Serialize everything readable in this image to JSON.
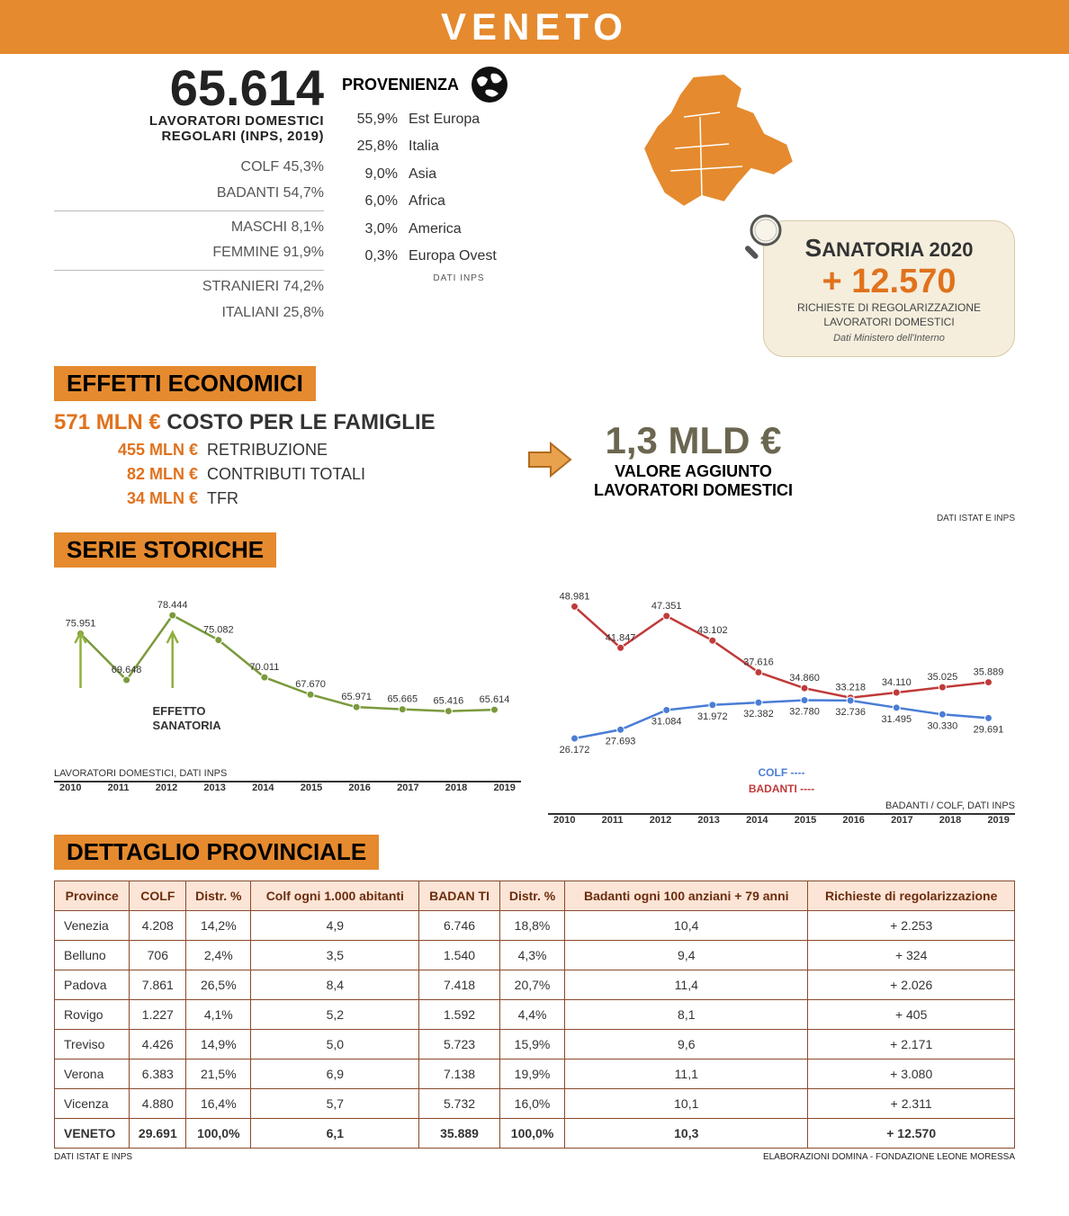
{
  "colors": {
    "orange_bar": "#e58a2e",
    "orange_text": "#e0721d",
    "olive": "#6b6650",
    "green_line": "#7a9a3c",
    "blue_line": "#4a7dd6",
    "red_line": "#c03a3a",
    "table_border": "#8a4a2c",
    "table_head_bg": "#fce5d6",
    "cream_box": "#f5eedd",
    "map_fill": "#e58a2e"
  },
  "title": "VENETO",
  "header": {
    "big_number": "65.614",
    "big_label1": "LAVORATORI DOMESTICI",
    "big_label2": "REGOLARI (INPS, 2019)",
    "stats": [
      "COLF 45,3%",
      "BADANTI 54,7%",
      "MASCHI 8,1%",
      "FEMMINE 91,9%",
      "STRANIERI 74,2%",
      "ITALIANI 25,8%"
    ]
  },
  "provenienza": {
    "title": "PROVENIENZA",
    "rows": [
      {
        "pct": "55,9%",
        "label": "Est Europa"
      },
      {
        "pct": "25,8%",
        "label": "Italia"
      },
      {
        "pct": "9,0%",
        "label": "Asia"
      },
      {
        "pct": "6,0%",
        "label": "Africa"
      },
      {
        "pct": "3,0%",
        "label": "America"
      },
      {
        "pct": "0,3%",
        "label": "Europa Ovest"
      }
    ],
    "source": "DATI INPS"
  },
  "sanatoria": {
    "title": "SANATORIA 2020",
    "value": "+ 12.570",
    "sub1": "RICHIESTE DI REGOLARIZZAZIONE",
    "sub2": "LAVORATORI DOMESTICI",
    "source": "Dati Ministero dell'Interno"
  },
  "sections": {
    "effetti": "EFFETTI ECONOMICI",
    "serie": "SERIE STORICHE",
    "dettaglio": "DETTAGLIO PROVINCIALE"
  },
  "effetti": {
    "headline_val": "571 MLN €",
    "headline_label": "COSTO PER LE FAMIGLIE",
    "lines": [
      {
        "amt": "455 MLN €",
        "label": "RETRIBUZIONE"
      },
      {
        "amt": "82 MLN €",
        "label": "CONTRIBUTI TOTALI"
      },
      {
        "amt": "34 MLN €",
        "label": "TFR"
      }
    ],
    "right_val": "1,3 MLD €",
    "right_sub1": "VALORE AGGIUNTO",
    "right_sub2": "LAVORATORI DOMESTICI",
    "source": "DATI ISTAT E INPS"
  },
  "serie_totale": {
    "type": "line",
    "years": [
      "2010",
      "2011",
      "2012",
      "2013",
      "2014",
      "2015",
      "2016",
      "2017",
      "2018",
      "2019"
    ],
    "values": [
      75951,
      69648,
      78444,
      75082,
      70011,
      67670,
      65971,
      65665,
      65416,
      65614
    ],
    "labels": [
      "75.951",
      "69.648",
      "78.444",
      "75.082",
      "70.011",
      "67.670",
      "65.971",
      "65.665",
      "65.416",
      "65.614"
    ],
    "ylim": [
      60000,
      82000
    ],
    "color": "#7a9a3c",
    "effetto_label": "EFFETTO\nSANATORIA",
    "caption": "LAVORATORI DOMESTICI, DATI INPS"
  },
  "serie_split": {
    "type": "line",
    "years": [
      "2010",
      "2011",
      "2012",
      "2013",
      "2014",
      "2015",
      "2016",
      "2017",
      "2018",
      "2019"
    ],
    "colf": {
      "values": [
        26172,
        27693,
        31084,
        31972,
        32382,
        32780,
        32736,
        31495,
        30330,
        29691
      ],
      "labels": [
        "26.172",
        "27.693",
        "31.084",
        "31.972",
        "32.382",
        "32.780",
        "32.736",
        "31.495",
        "30.330",
        "29.691"
      ],
      "color": "#4a7dd6",
      "legend": "COLF"
    },
    "badanti": {
      "values": [
        48981,
        41847,
        47351,
        43102,
        37616,
        34860,
        33218,
        34110,
        35025,
        35889
      ],
      "labels": [
        "48.981",
        "41.847",
        "47.351",
        "43.102",
        "37.616",
        "34.860",
        "33.218",
        "34.110",
        "35.025",
        "35.889"
      ],
      "color": "#c03a3a",
      "legend": "BADANTI"
    },
    "ylim": [
      24000,
      52000
    ],
    "caption": "BADANTI / COLF, DATI INPS"
  },
  "table": {
    "headers": [
      "Province",
      "COLF",
      "Distr. %",
      "Colf ogni 1.000 abitanti",
      "BADAN TI",
      "Distr. %",
      "Badanti ogni 100 anziani + 79 anni",
      "Richieste di regolarizzazione"
    ],
    "rows": [
      [
        "Venezia",
        "4.208",
        "14,2%",
        "4,9",
        "6.746",
        "18,8%",
        "10,4",
        "+ 2.253"
      ],
      [
        "Belluno",
        "706",
        "2,4%",
        "3,5",
        "1.540",
        "4,3%",
        "9,4",
        "+ 324"
      ],
      [
        "Padova",
        "7.861",
        "26,5%",
        "8,4",
        "7.418",
        "20,7%",
        "11,4",
        "+ 2.026"
      ],
      [
        "Rovigo",
        "1.227",
        "4,1%",
        "5,2",
        "1.592",
        "4,4%",
        "8,1",
        "+ 405"
      ],
      [
        "Treviso",
        "4.426",
        "14,9%",
        "5,0",
        "5.723",
        "15,9%",
        "9,6",
        "+ 2.171"
      ],
      [
        "Verona",
        "6.383",
        "21,5%",
        "6,9",
        "7.138",
        "19,9%",
        "11,1",
        "+ 3.080"
      ],
      [
        "Vicenza",
        "4.880",
        "16,4%",
        "5,7",
        "5.732",
        "16,0%",
        "10,1",
        "+ 2.311"
      ]
    ],
    "total": [
      "VENETO",
      "29.691",
      "100,0%",
      "6,1",
      "35.889",
      "100,0%",
      "10,3",
      "+ 12.570"
    ],
    "footer_left": "DATI ISTAT E INPS",
    "footer_right": "ELABORAZIONI DOMINA - FONDAZIONE LEONE MORESSA"
  }
}
